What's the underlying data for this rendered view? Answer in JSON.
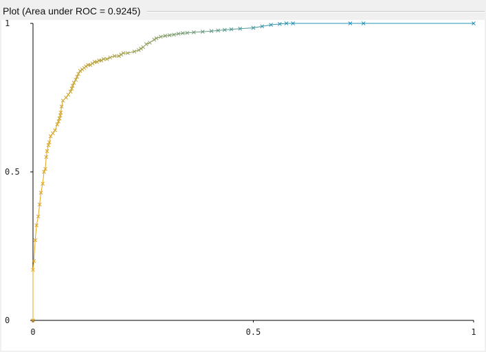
{
  "window": {
    "title": "Plot (Area under ROC = 0.9245)"
  },
  "chart_data": {
    "type": "line",
    "title": "Plot (Area under ROC = 0.9245)",
    "auc": 0.9245,
    "xlabel": "",
    "ylabel": "",
    "xlim": [
      0,
      1
    ],
    "ylim": [
      0,
      1
    ],
    "x_ticks": [
      {
        "value": 0,
        "label": "0"
      },
      {
        "value": 0.5,
        "label": "0.5"
      },
      {
        "value": 1,
        "label": "1"
      }
    ],
    "y_ticks": [
      {
        "value": 0,
        "label": "0"
      },
      {
        "value": 0.5,
        "label": "0.5"
      },
      {
        "value": 1,
        "label": "1"
      }
    ],
    "grid": false,
    "color_start": "#e5a514",
    "color_end": "#1f93ba",
    "marker": "x",
    "series": [
      {
        "name": "ROC",
        "x": [
          0.0,
          0.0,
          0.002,
          0.005,
          0.008,
          0.012,
          0.015,
          0.018,
          0.022,
          0.025,
          0.028,
          0.03,
          0.032,
          0.035,
          0.037,
          0.04,
          0.045,
          0.05,
          0.055,
          0.058,
          0.06,
          0.062,
          0.063,
          0.065,
          0.068,
          0.075,
          0.08,
          0.085,
          0.088,
          0.09,
          0.093,
          0.097,
          0.1,
          0.103,
          0.107,
          0.112,
          0.116,
          0.12,
          0.125,
          0.13,
          0.135,
          0.14,
          0.145,
          0.15,
          0.155,
          0.16,
          0.168,
          0.175,
          0.185,
          0.195,
          0.2,
          0.205,
          0.215,
          0.23,
          0.24,
          0.245,
          0.25,
          0.257,
          0.265,
          0.275,
          0.28,
          0.29,
          0.3,
          0.31,
          0.32,
          0.33,
          0.34,
          0.35,
          0.365,
          0.385,
          0.405,
          0.42,
          0.435,
          0.45,
          0.47,
          0.5,
          0.52,
          0.54,
          0.56,
          0.575,
          0.59,
          0.72,
          0.75,
          1.0
        ],
        "y": [
          0.0,
          0.17,
          0.2,
          0.27,
          0.32,
          0.35,
          0.39,
          0.43,
          0.46,
          0.5,
          0.51,
          0.55,
          0.57,
          0.59,
          0.6,
          0.62,
          0.63,
          0.64,
          0.66,
          0.67,
          0.68,
          0.69,
          0.7,
          0.72,
          0.74,
          0.75,
          0.76,
          0.77,
          0.78,
          0.79,
          0.8,
          0.81,
          0.82,
          0.83,
          0.84,
          0.845,
          0.85,
          0.855,
          0.86,
          0.86,
          0.865,
          0.87,
          0.87,
          0.875,
          0.875,
          0.88,
          0.88,
          0.885,
          0.89,
          0.89,
          0.895,
          0.9,
          0.9,
          0.905,
          0.91,
          0.915,
          0.92,
          0.93,
          0.935,
          0.945,
          0.95,
          0.955,
          0.958,
          0.96,
          0.962,
          0.965,
          0.967,
          0.968,
          0.97,
          0.972,
          0.974,
          0.976,
          0.978,
          0.98,
          0.982,
          0.985,
          0.99,
          0.995,
          0.998,
          1.0,
          1.0,
          1.0,
          1.0,
          1.0
        ]
      }
    ]
  }
}
